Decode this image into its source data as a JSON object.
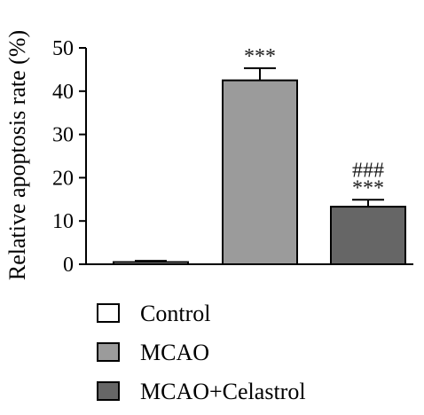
{
  "chart_data": {
    "type": "bar",
    "ylabel": "Relative apoptosis rate (%)",
    "xlabel": "",
    "ylim": [
      0,
      50
    ],
    "yticks": [
      0,
      10,
      20,
      30,
      40,
      50
    ],
    "categories": [
      "Control",
      "MCAO",
      "MCAO+Celastrol"
    ],
    "values": [
      0.5,
      42.5,
      13.3
    ],
    "errors": [
      0.3,
      2.8,
      1.6
    ],
    "colors": [
      "#ffffff",
      "#9b9b9b",
      "#666666"
    ],
    "annotations": [
      [],
      [
        "***"
      ],
      [
        "###",
        "***"
      ]
    ],
    "legend": {
      "placement": "bottom",
      "entries": [
        {
          "label": "Control",
          "color": "#ffffff"
        },
        {
          "label": "MCAO",
          "color": "#9b9b9b"
        },
        {
          "label": "MCAO+Celastrol",
          "color": "#666666"
        }
      ]
    },
    "grid": false
  }
}
